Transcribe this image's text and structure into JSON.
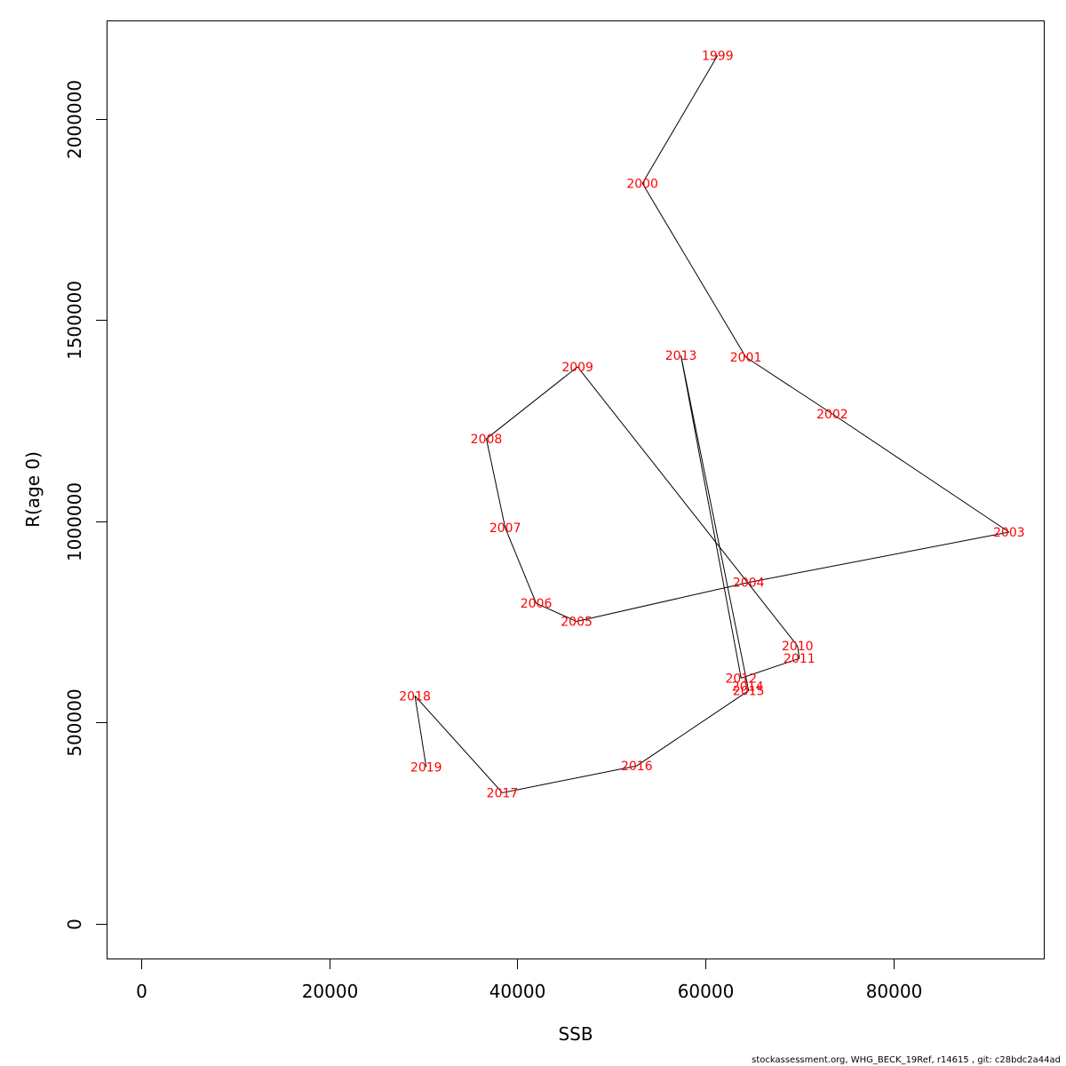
{
  "chart_data": {
    "type": "line",
    "title": "",
    "xlabel": "SSB",
    "ylabel": "R(age 0)",
    "xlim": [
      -3700,
      96000
    ],
    "ylim": [
      -87000,
      2245000
    ],
    "x_ticks": [
      0,
      20000,
      40000,
      60000,
      80000
    ],
    "x_tick_labels": [
      "0",
      "20000",
      "40000",
      "60000",
      "80000"
    ],
    "y_ticks": [
      0,
      500000,
      1000000,
      1500000,
      2000000
    ],
    "y_tick_labels": [
      "0",
      "500000",
      "1000000",
      "1500000",
      "2000000"
    ],
    "grid": false,
    "line_color": "#000000",
    "label_color": "#ff0000",
    "points": [
      {
        "label": "1999",
        "x": 61300,
        "y": 2158000
      },
      {
        "label": "2000",
        "x": 53300,
        "y": 1840000
      },
      {
        "label": "2001",
        "x": 64300,
        "y": 1408000
      },
      {
        "label": "2002",
        "x": 73500,
        "y": 1267000
      },
      {
        "label": "2003",
        "x": 92300,
        "y": 973000
      },
      {
        "label": "2004",
        "x": 64600,
        "y": 848000
      },
      {
        "label": "2005",
        "x": 46300,
        "y": 751000
      },
      {
        "label": "2006",
        "x": 42000,
        "y": 796000
      },
      {
        "label": "2007",
        "x": 38700,
        "y": 984000
      },
      {
        "label": "2008",
        "x": 36700,
        "y": 1205000
      },
      {
        "label": "2009",
        "x": 46400,
        "y": 1384000
      },
      {
        "label": "2010",
        "x": 69800,
        "y": 690000
      },
      {
        "label": "2011",
        "x": 70000,
        "y": 659000
      },
      {
        "label": "2012",
        "x": 63800,
        "y": 610000
      },
      {
        "label": "2013",
        "x": 57400,
        "y": 1412000
      },
      {
        "label": "2014",
        "x": 64500,
        "y": 590000
      },
      {
        "label": "2015",
        "x": 64600,
        "y": 579000
      },
      {
        "label": "2016",
        "x": 52700,
        "y": 392000
      },
      {
        "label": "2017",
        "x": 38400,
        "y": 325000
      },
      {
        "label": "2018",
        "x": 29100,
        "y": 566000
      },
      {
        "label": "2019",
        "x": 30300,
        "y": 389000
      }
    ]
  },
  "footer": "stockassessment.org, WHG_BECK_19Ref, r14615 , git: c28bdc2a44ad"
}
